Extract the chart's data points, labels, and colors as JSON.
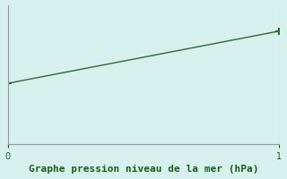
{
  "x": [
    0,
    1
  ],
  "y": [
    1021.5,
    1024.5
  ],
  "ylim": [
    1018,
    1026
  ],
  "xlim": [
    0,
    1
  ],
  "line_color": "#2d6a2d",
  "marker": "+",
  "markersize": 6,
  "markeredgewidth": 1.5,
  "background_color": "#d6f0ee",
  "xlabel": "Graphe pression niveau de la mer (hPa)",
  "xlabel_color": "#1a5c1a",
  "xlabel_fontsize": 8,
  "xticks": [
    0,
    1
  ],
  "axis_color": "#999999",
  "line_width": 1.0
}
